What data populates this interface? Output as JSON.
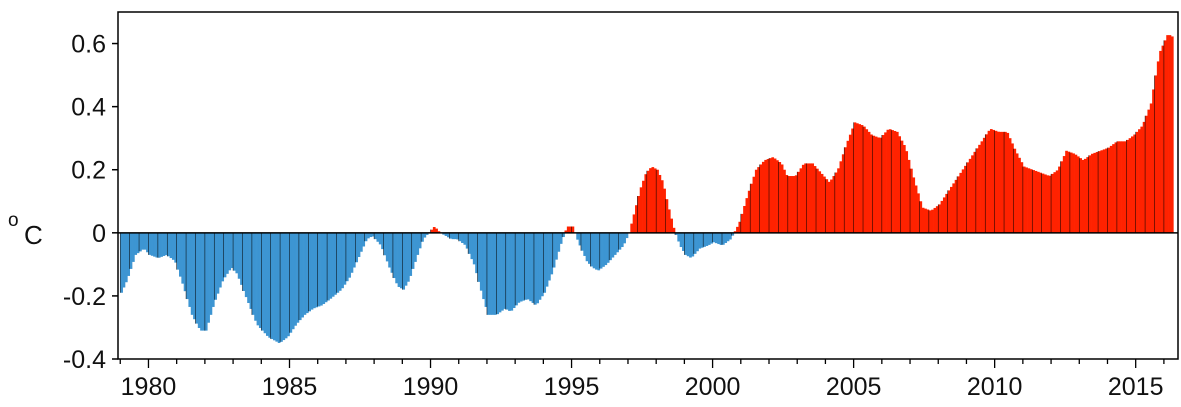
{
  "chart_data": {
    "type": "bar",
    "title": "",
    "xlabel": "",
    "ylabel": "°C",
    "ylabel_parts": {
      "degree": "o",
      "unit": "C"
    },
    "xlim": [
      1978.92,
      2016.5
    ],
    "ylim": [
      -0.4,
      0.7
    ],
    "yticks": [
      -0.4,
      -0.2,
      0,
      0.2,
      0.4,
      0.6
    ],
    "ytick_labels": [
      "-0.4",
      "-0.2",
      "0",
      "0.2",
      "0.4",
      "0.6"
    ],
    "xticks": [
      1980,
      1985,
      1990,
      1995,
      2000,
      2005,
      2010,
      2015
    ],
    "xtick_labels": [
      "1980",
      "1985",
      "1990",
      "1995",
      "2000",
      "2005",
      "2010",
      "2015"
    ],
    "grid": false,
    "legend": "none",
    "colors": {
      "positive": "#ff2200",
      "negative": "#3d95d2",
      "outline": "#000000"
    },
    "series": [
      {
        "values_by_month": true,
        "start": "1979-01",
        "end": "2016-04",
        "keypoints": [
          [
            1979.0,
            -0.19
          ],
          [
            1979.2,
            -0.15
          ],
          [
            1979.5,
            -0.07
          ],
          [
            1979.8,
            -0.05
          ],
          [
            1980.0,
            -0.07
          ],
          [
            1980.3,
            -0.08
          ],
          [
            1980.6,
            -0.07
          ],
          [
            1980.9,
            -0.09
          ],
          [
            1981.2,
            -0.17
          ],
          [
            1981.5,
            -0.26
          ],
          [
            1981.8,
            -0.31
          ],
          [
            1982.0,
            -0.31
          ],
          [
            1982.3,
            -0.22
          ],
          [
            1982.6,
            -0.15
          ],
          [
            1982.9,
            -0.11
          ],
          [
            1983.1,
            -0.13
          ],
          [
            1983.4,
            -0.2
          ],
          [
            1983.8,
            -0.29
          ],
          [
            1984.2,
            -0.33
          ],
          [
            1984.6,
            -0.35
          ],
          [
            1984.9,
            -0.33
          ],
          [
            1985.2,
            -0.29
          ],
          [
            1985.5,
            -0.26
          ],
          [
            1985.8,
            -0.24
          ],
          [
            1986.1,
            -0.23
          ],
          [
            1986.4,
            -0.21
          ],
          [
            1986.8,
            -0.18
          ],
          [
            1987.1,
            -0.14
          ],
          [
            1987.4,
            -0.08
          ],
          [
            1987.7,
            -0.02
          ],
          [
            1987.9,
            -0.01
          ],
          [
            1988.2,
            -0.04
          ],
          [
            1988.5,
            -0.11
          ],
          [
            1988.8,
            -0.17
          ],
          [
            1989.0,
            -0.18
          ],
          [
            1989.2,
            -0.15
          ],
          [
            1989.5,
            -0.07
          ],
          [
            1989.7,
            -0.02
          ],
          [
            1989.9,
            0.0
          ],
          [
            1990.1,
            0.02
          ],
          [
            1990.3,
            0.0
          ],
          [
            1990.5,
            -0.01
          ],
          [
            1990.7,
            -0.02
          ],
          [
            1990.9,
            -0.02
          ],
          [
            1991.2,
            -0.04
          ],
          [
            1991.5,
            -0.1
          ],
          [
            1991.8,
            -0.2
          ],
          [
            1992.0,
            -0.26
          ],
          [
            1992.3,
            -0.26
          ],
          [
            1992.6,
            -0.24
          ],
          [
            1992.8,
            -0.25
          ],
          [
            1993.1,
            -0.22
          ],
          [
            1993.4,
            -0.21
          ],
          [
            1993.7,
            -0.23
          ],
          [
            1994.0,
            -0.19
          ],
          [
            1994.3,
            -0.12
          ],
          [
            1994.6,
            -0.03
          ],
          [
            1994.8,
            0.02
          ],
          [
            1995.0,
            0.02
          ],
          [
            1995.2,
            -0.03
          ],
          [
            1995.5,
            -0.09
          ],
          [
            1995.7,
            -0.11
          ],
          [
            1995.9,
            -0.12
          ],
          [
            1996.2,
            -0.1
          ],
          [
            1996.5,
            -0.07
          ],
          [
            1996.8,
            -0.04
          ],
          [
            1997.0,
            0.0
          ],
          [
            1997.2,
            0.07
          ],
          [
            1997.4,
            0.14
          ],
          [
            1997.6,
            0.19
          ],
          [
            1997.8,
            0.21
          ],
          [
            1998.0,
            0.2
          ],
          [
            1998.2,
            0.16
          ],
          [
            1998.4,
            0.08
          ],
          [
            1998.6,
            0.01
          ],
          [
            1998.8,
            -0.04
          ],
          [
            1999.0,
            -0.07
          ],
          [
            1999.2,
            -0.08
          ],
          [
            1999.5,
            -0.05
          ],
          [
            1999.8,
            -0.04
          ],
          [
            2000.0,
            -0.03
          ],
          [
            2000.3,
            -0.04
          ],
          [
            2000.6,
            -0.02
          ],
          [
            2000.9,
            0.03
          ],
          [
            2001.2,
            0.12
          ],
          [
            2001.5,
            0.2
          ],
          [
            2001.8,
            0.23
          ],
          [
            2002.1,
            0.24
          ],
          [
            2002.4,
            0.22
          ],
          [
            2002.6,
            0.18
          ],
          [
            2002.9,
            0.18
          ],
          [
            2003.2,
            0.22
          ],
          [
            2003.5,
            0.22
          ],
          [
            2003.8,
            0.19
          ],
          [
            2004.1,
            0.16
          ],
          [
            2004.4,
            0.2
          ],
          [
            2004.7,
            0.28
          ],
          [
            2005.0,
            0.35
          ],
          [
            2005.3,
            0.34
          ],
          [
            2005.6,
            0.31
          ],
          [
            2005.9,
            0.3
          ],
          [
            2006.2,
            0.33
          ],
          [
            2006.5,
            0.32
          ],
          [
            2006.8,
            0.27
          ],
          [
            2007.1,
            0.17
          ],
          [
            2007.4,
            0.08
          ],
          [
            2007.7,
            0.07
          ],
          [
            2008.0,
            0.09
          ],
          [
            2008.3,
            0.13
          ],
          [
            2008.6,
            0.17
          ],
          [
            2008.9,
            0.21
          ],
          [
            2009.2,
            0.25
          ],
          [
            2009.5,
            0.29
          ],
          [
            2009.8,
            0.33
          ],
          [
            2010.1,
            0.32
          ],
          [
            2010.4,
            0.32
          ],
          [
            2010.7,
            0.26
          ],
          [
            2011.0,
            0.21
          ],
          [
            2011.3,
            0.2
          ],
          [
            2011.6,
            0.19
          ],
          [
            2011.9,
            0.18
          ],
          [
            2012.2,
            0.2
          ],
          [
            2012.5,
            0.26
          ],
          [
            2012.8,
            0.25
          ],
          [
            2013.1,
            0.23
          ],
          [
            2013.4,
            0.25
          ],
          [
            2013.7,
            0.26
          ],
          [
            2014.0,
            0.27
          ],
          [
            2014.3,
            0.29
          ],
          [
            2014.6,
            0.29
          ],
          [
            2014.9,
            0.31
          ],
          [
            2015.2,
            0.34
          ],
          [
            2015.5,
            0.41
          ],
          [
            2015.8,
            0.57
          ],
          [
            2016.1,
            0.63
          ],
          [
            2016.3,
            0.62
          ]
        ]
      }
    ]
  }
}
